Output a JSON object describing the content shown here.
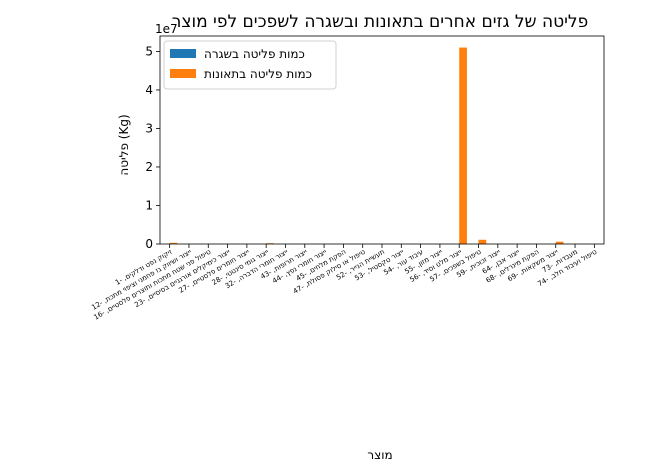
{
  "chart_data": {
    "type": "bar",
    "title": "פליטה של גזים אחרים בתאונות ובשגרה לשפכים לפי מוצר",
    "xlabel": "מוצר",
    "ylabel": "פליטה (Kg)",
    "y_multiplier_label": "1e7",
    "y_unit_scale": 10000000,
    "ylim": [
      0,
      54000000
    ],
    "yticks": [
      0,
      1,
      2,
      3,
      4,
      5
    ],
    "grid": false,
    "legend_position": "top-left",
    "categories": [
      "1- ,זיקוק נפט ודלקים",
      "12- ,ייצור ושיווק גז פחמני וציפוי מתכת",
      "16- ,טיפול פני שטח מתכות ותוצרים פלסטיים",
      "23- ,ייצור כימיקלים אורגניים בסיסיים",
      "27- ,ייצור חומרים פלסטיים",
      "28- ,ייצור גומי סינטטי",
      "32- ,ייצור חומרי הדברה",
      "43- ,ייצור תרופות",
      "44- ,ייצור חומרי נפץ",
      "45- ,הפקת מלחים",
      "47- ,טיפול או סילוק פסולת",
      "52- ,תעשיית הנייר",
      "53- ,ייצור טקסטיל",
      "54- ,עיבוד עור",
      "55- ,ייצור מזון",
      "56- ,ייצור מלט וסיד",
      "57- ,טיפול בשפכים",
      "59- ,ייצור זכוכית",
      "64- ,ייצור אבן",
      "68- ,הפקת מינרלים",
      "69- ,ייצור משקאות",
      "73- ,מעבדות",
      "74- ,טיפול ועיבוד חלב"
    ],
    "series": [
      {
        "name": "כמות פליטה בשגרה",
        "color": "#1f77b4",
        "values": [
          0,
          0,
          0,
          0,
          0,
          0,
          0,
          0,
          0,
          0,
          0,
          0,
          0,
          0,
          0,
          0,
          0,
          0,
          0,
          0,
          0,
          0,
          0
        ]
      },
      {
        "name": "כמות פליטה בתאונות",
        "color": "#ff7f0e",
        "values": [
          300000,
          0,
          0,
          0,
          0,
          200000,
          0,
          0,
          0,
          0,
          0,
          0,
          0,
          0,
          0,
          51000000,
          1100000,
          0,
          0,
          0,
          600000,
          0,
          0
        ]
      }
    ]
  }
}
